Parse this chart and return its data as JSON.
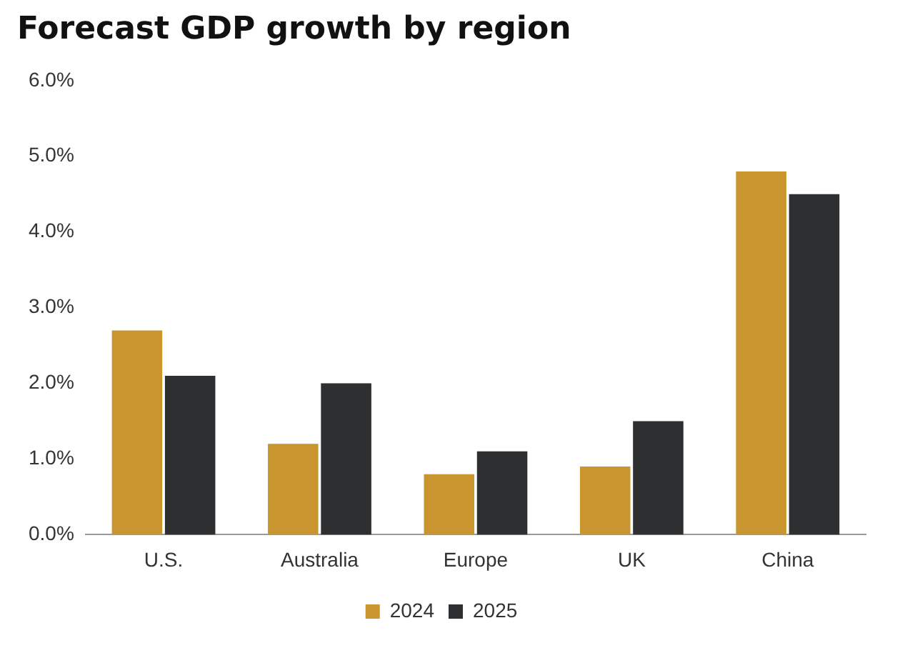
{
  "chart_data": {
    "type": "bar",
    "title": "Forecast GDP growth by region",
    "categories": [
      "U.S.",
      "Australia",
      "Europe",
      "UK",
      "China"
    ],
    "series": [
      {
        "name": "2024",
        "color": "#c9952f",
        "values": [
          2.7,
          1.2,
          0.8,
          0.9,
          4.8
        ]
      },
      {
        "name": "2025",
        "color": "#2e2f31",
        "values": [
          2.1,
          2.0,
          1.1,
          1.5,
          4.5
        ]
      }
    ],
    "ylim": [
      0,
      6
    ],
    "yticks": [
      {
        "value": 0,
        "label": "0.0%"
      },
      {
        "value": 1,
        "label": "1.0%"
      },
      {
        "value": 2,
        "label": "2.0%"
      },
      {
        "value": 3,
        "label": "3.0%"
      },
      {
        "value": 4,
        "label": "4.0%"
      },
      {
        "value": 5,
        "label": "5.0%"
      },
      {
        "value": 6,
        "label": "6.0%"
      }
    ],
    "grid": false,
    "legend": "bottom"
  }
}
